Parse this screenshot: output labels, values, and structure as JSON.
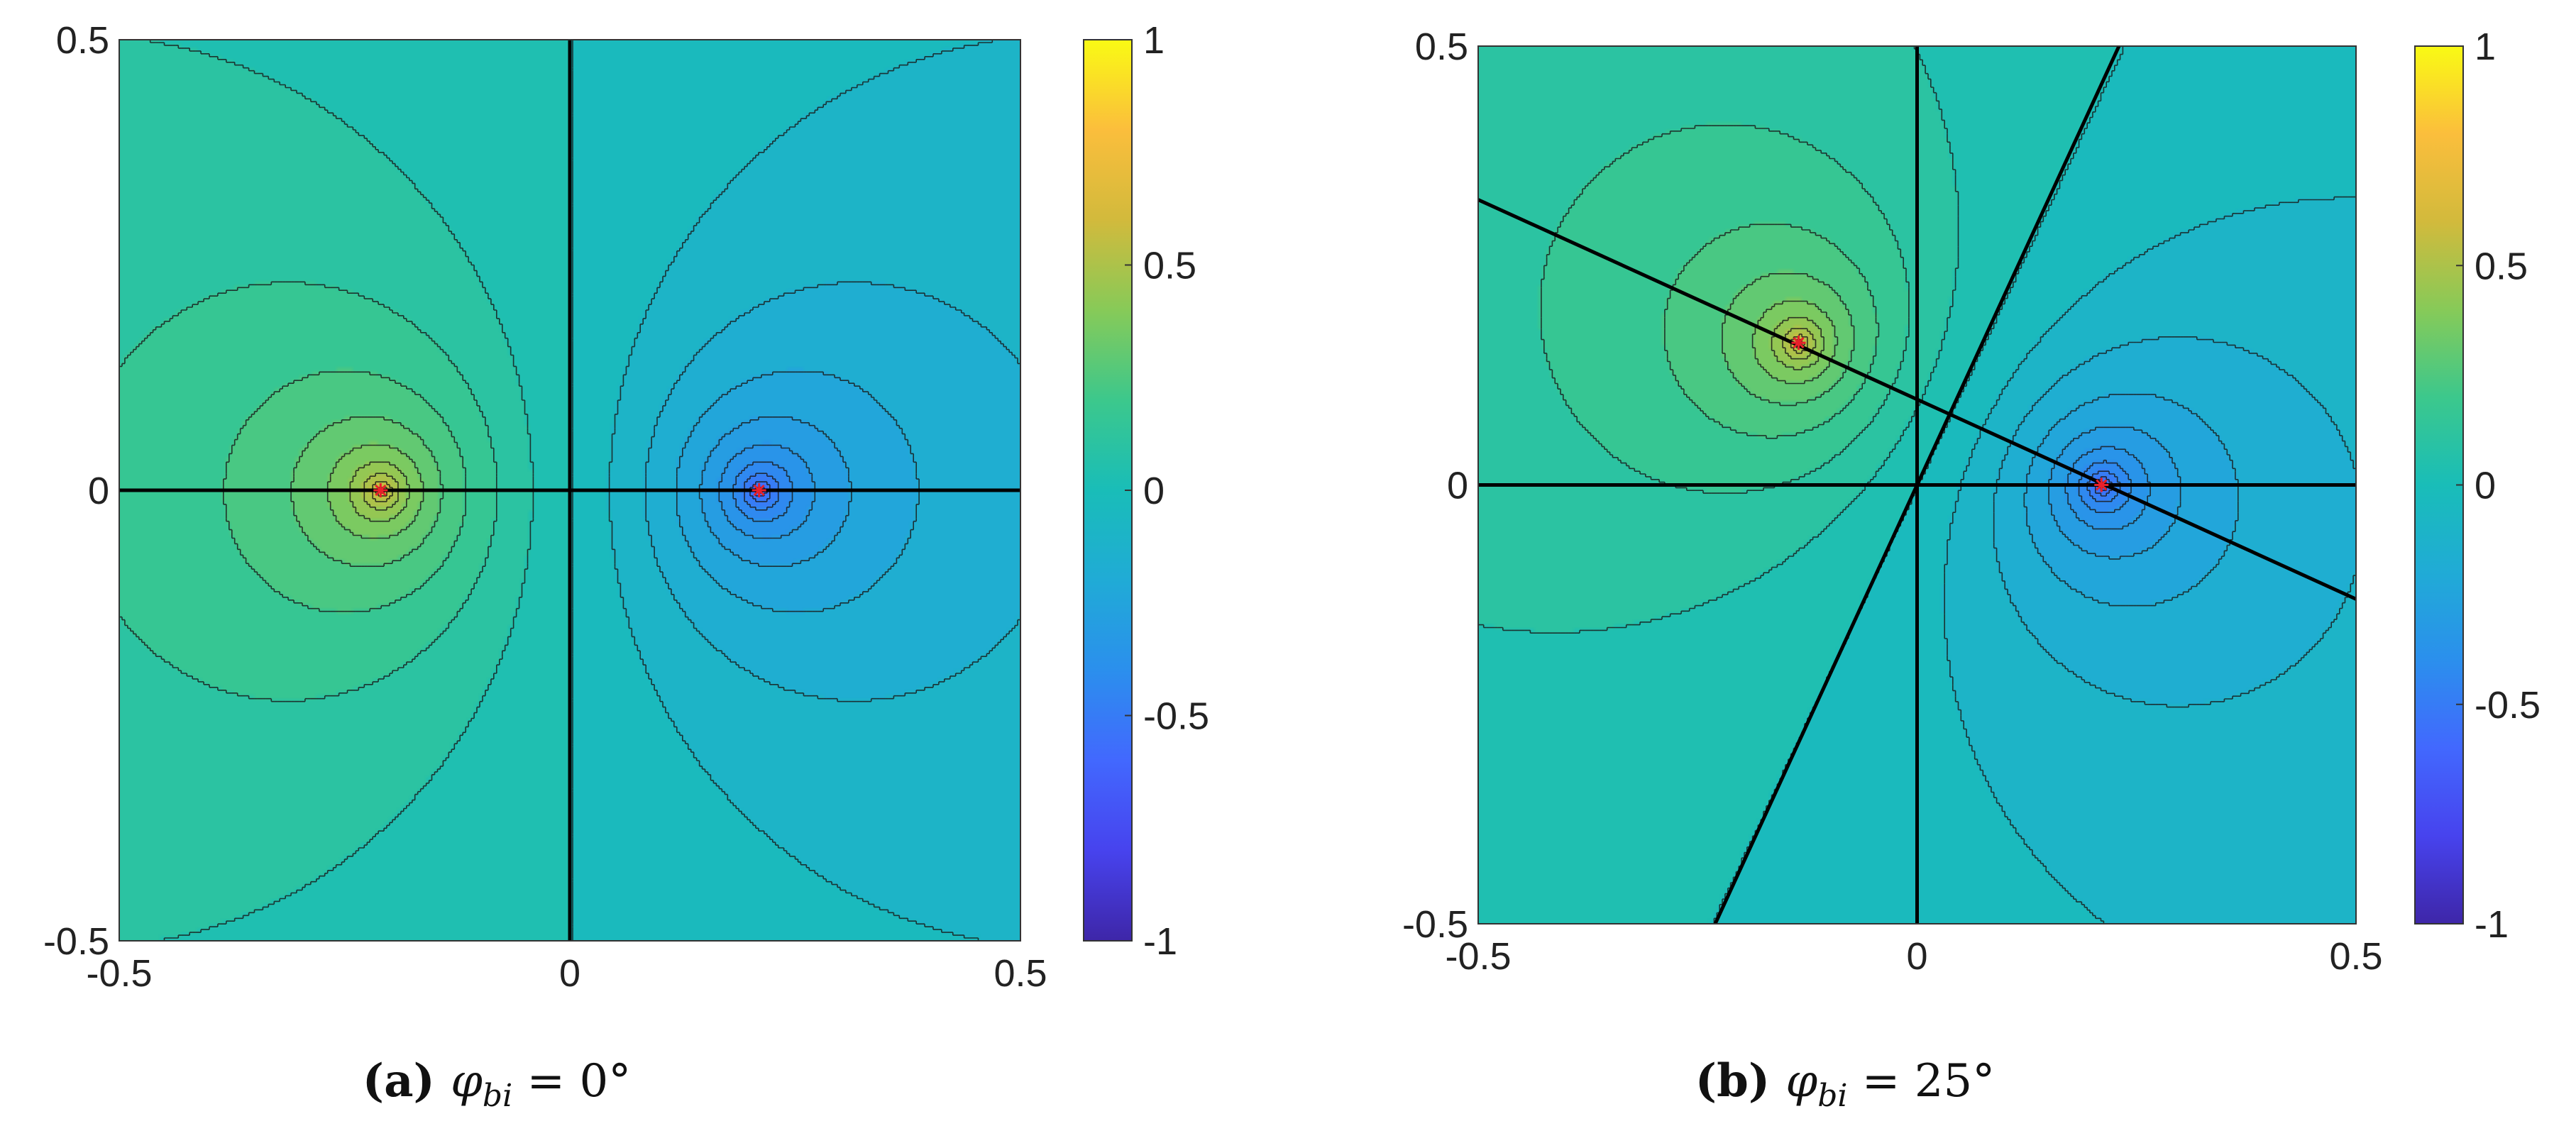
{
  "chart_data": [
    {
      "type": "heatmap",
      "subtype": "filled-contour",
      "caption_label": "(a)",
      "caption_math": "φ_bi = 0°",
      "caption_symbol": "φ",
      "caption_sub": "bi",
      "caption_value": "= 0°",
      "xlim": [
        -0.5,
        0.5
      ],
      "ylim": [
        -0.5,
        0.5
      ],
      "xticks": [
        "-0.5",
        "0",
        "0.5"
      ],
      "yticks": [
        "0.5",
        "0",
        "-0.5"
      ],
      "colorbar": {
        "min": -1,
        "max": 1,
        "ticks": [
          "1",
          "0.5",
          "0",
          "-0.5",
          "-1"
        ]
      },
      "sources": [
        {
          "x": -0.21,
          "y": 0.0,
          "strength": 1
        },
        {
          "x": 0.21,
          "y": 0.0,
          "strength": -1
        }
      ],
      "lines": [
        {
          "type": "horizontal",
          "y": 0
        },
        {
          "type": "vertical",
          "x": 0
        }
      ],
      "contour_levels": 30,
      "colormap": "parula"
    },
    {
      "type": "heatmap",
      "subtype": "filled-contour",
      "caption_label": "(b)",
      "caption_math": "φ_bi = 25°",
      "caption_symbol": "φ",
      "caption_sub": "bi",
      "caption_value": "= 25°",
      "xlim": [
        -0.5,
        0.5
      ],
      "ylim": [
        -0.5,
        0.5
      ],
      "xticks": [
        "-0.5",
        "0",
        "0.5"
      ],
      "yticks": [
        "0.5",
        "0",
        "-0.5"
      ],
      "colorbar": {
        "min": -1,
        "max": 1,
        "ticks": [
          "1",
          "0.5",
          "0",
          "-0.5",
          "-1"
        ]
      },
      "sources": [
        {
          "x": -0.135,
          "y": 0.162,
          "strength": 1
        },
        {
          "x": 0.21,
          "y": 0.0,
          "strength": -1
        }
      ],
      "lines": [
        {
          "type": "horizontal",
          "y": 0
        },
        {
          "type": "vertical",
          "x": 0
        },
        {
          "type": "segment",
          "x1": -0.5,
          "y1": 0.325,
          "x2": 0.5,
          "y2": -0.13
        },
        {
          "type": "segment",
          "x1": -0.23,
          "y1": -0.5,
          "x2": 0.23,
          "y2": 0.5
        }
      ],
      "contour_levels": 30,
      "colormap": "parula"
    }
  ]
}
